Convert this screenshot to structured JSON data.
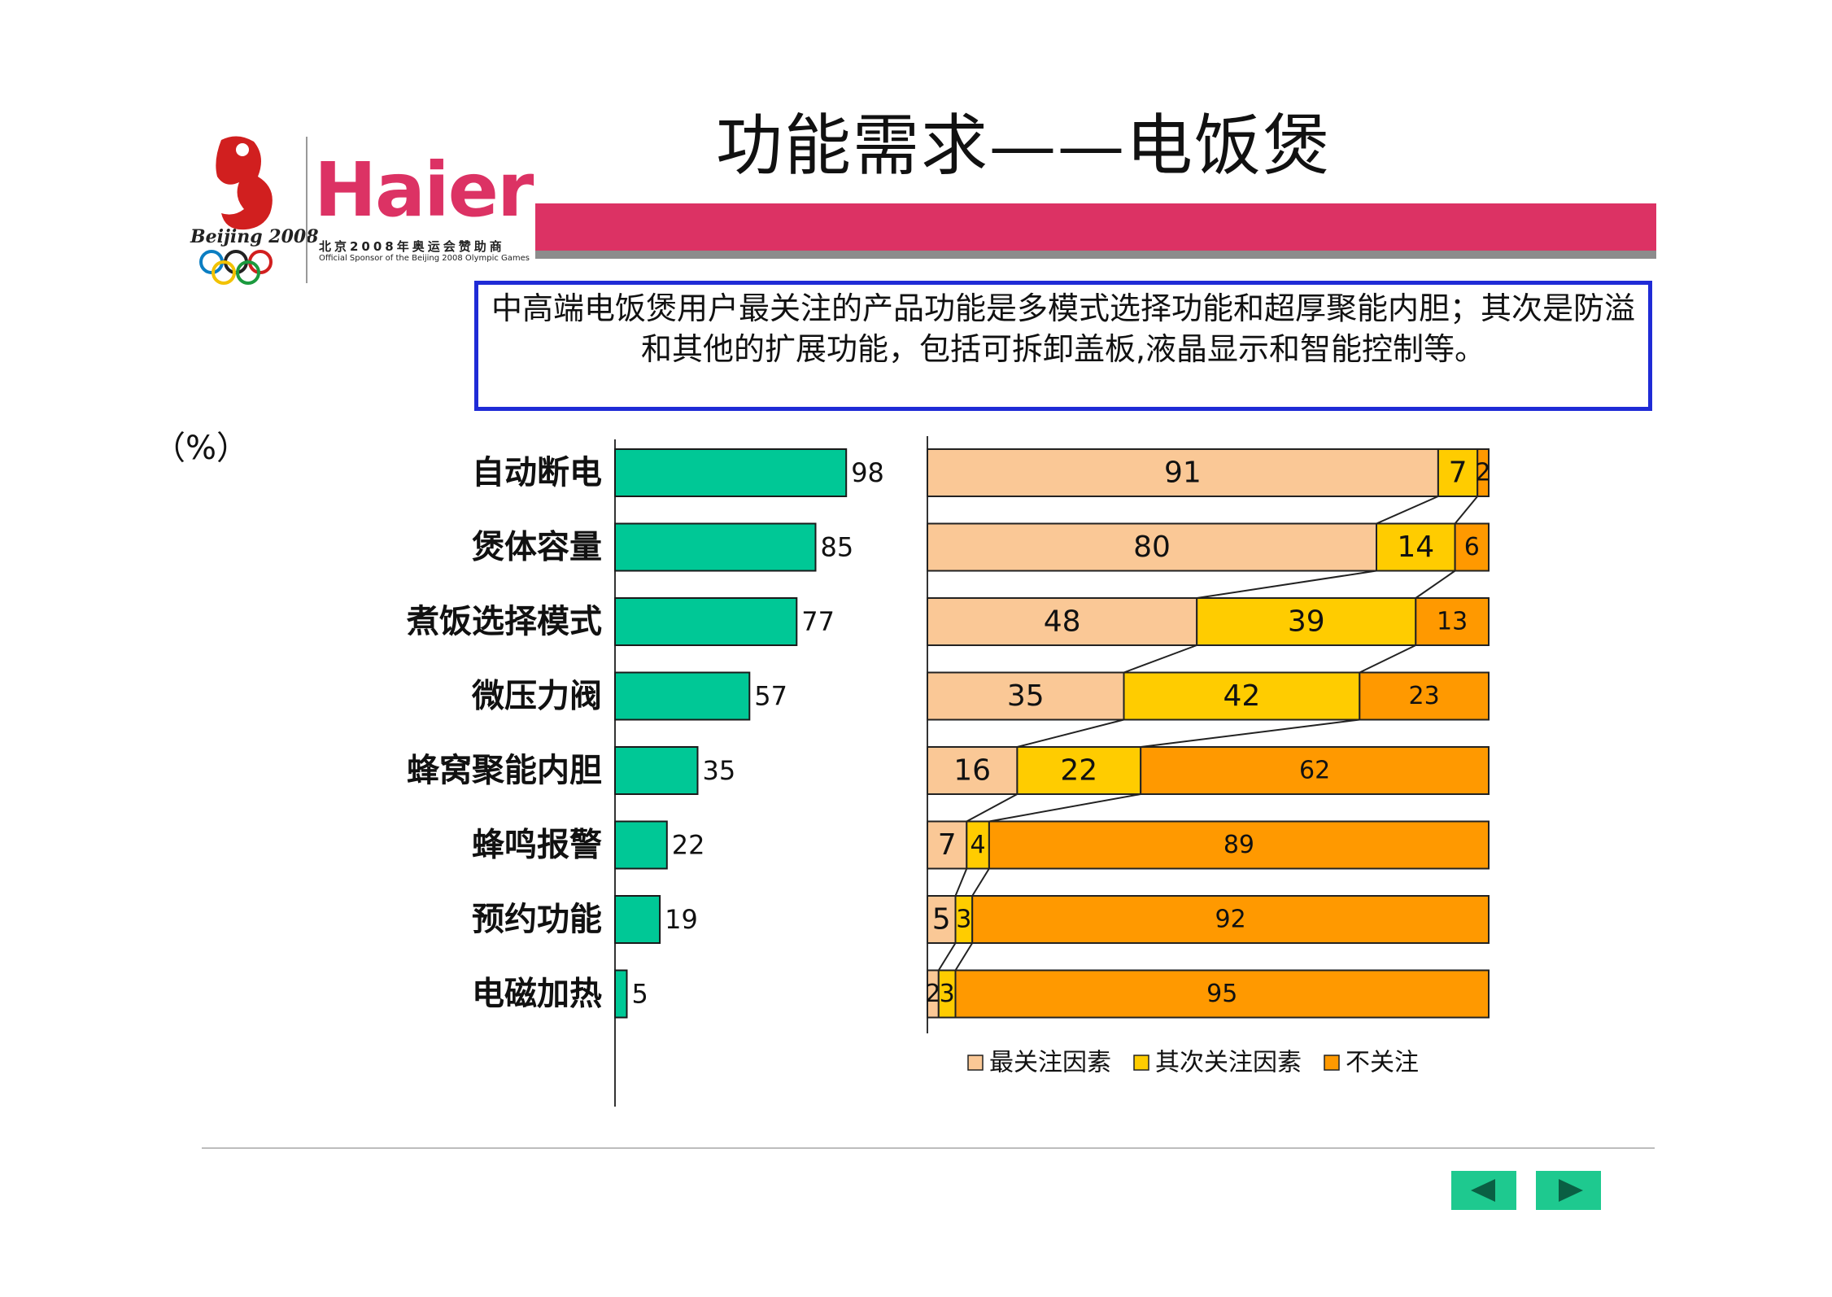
{
  "slide": {
    "title": "功能需求——电饭煲",
    "summary": "中高端电饭煲用户最关注的产品功能是多模式选择功能和超厚聚能内胆；其次是防溢和其他的扩展功能，包括可拆卸盖板,液晶显示和智能控制等。",
    "unit": "（%）"
  },
  "logo": {
    "brand": "Haier",
    "sponsor_cn": "北京2008年奥运会赞助商",
    "sponsor_en": "Official Sponsor of the Beijing 2008 Olympic Games",
    "olympic_text": "Beijing 2008"
  },
  "colors": {
    "accent_red": "#dc3264",
    "bar_green": "#00c896",
    "most": "#fac896",
    "second": "#ffcc00",
    "none": "#ff9900",
    "border_blue": "#1f2bd6",
    "nav_green": "#1ec98f"
  },
  "chart_data": [
    {
      "type": "bar",
      "orientation": "horizontal",
      "categories": [
        "自动断电",
        "煲体容量",
        "煮饭选择模式",
        "微压力阀",
        "蜂窝聚能内胆",
        "蜂鸣报警",
        "预约功能",
        "电磁加热"
      ],
      "values": [
        98,
        85,
        77,
        57,
        35,
        22,
        19,
        5
      ],
      "xlim": [
        0,
        100
      ]
    },
    {
      "type": "bar",
      "orientation": "horizontal",
      "stacked": true,
      "percent": true,
      "categories": [
        "自动断电",
        "煲体容量",
        "煮饭选择模式",
        "微压力阀",
        "蜂窝聚能内胆",
        "蜂鸣报警",
        "预约功能",
        "电磁加热"
      ],
      "series": [
        {
          "name": "最关注因素",
          "values": [
            91,
            80,
            48,
            35,
            16,
            7,
            5,
            2
          ]
        },
        {
          "name": "其次关注因素",
          "values": [
            7,
            14,
            39,
            42,
            22,
            4,
            3,
            3
          ]
        },
        {
          "name": "不关注",
          "values": [
            2,
            6,
            13,
            23,
            62,
            89,
            92,
            95
          ]
        }
      ],
      "legend_position": "bottom"
    }
  ],
  "nav": {
    "prev_icon": "triangle-left-icon",
    "next_icon": "triangle-right-icon"
  }
}
